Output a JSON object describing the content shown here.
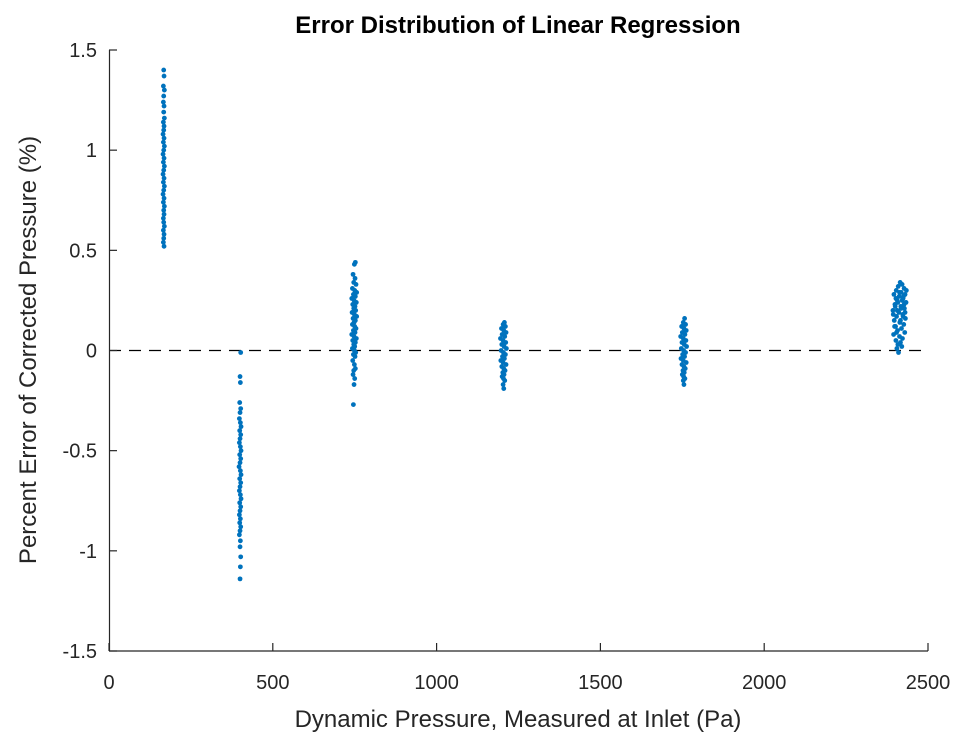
{
  "chart_data": {
    "type": "scatter",
    "title": "Error Distribution of Linear Regression",
    "xlabel": "Dynamic Pressure, Measured at Inlet (Pa)",
    "ylabel": "Percent Error of Corrected Pressure (%)",
    "xlim": [
      0,
      2500
    ],
    "ylim": [
      -1.5,
      1.5
    ],
    "xticks": [
      0,
      500,
      1000,
      1500,
      2000,
      2500
    ],
    "yticks": [
      -1.5,
      -1,
      -0.5,
      0,
      0.5,
      1,
      1.5
    ],
    "xtick_labels": [
      "0",
      "500",
      "1000",
      "1500",
      "2000",
      "2500"
    ],
    "ytick_labels": [
      "-1.5",
      "-1",
      "-0.5",
      "0",
      "0.5",
      "1",
      "1.5"
    ],
    "reference_line": {
      "y": 0,
      "style": "dashed"
    },
    "grid": false,
    "colors": {
      "marker": "#0072BD",
      "axis": "#262626",
      "reference_line": "#000000"
    },
    "series": [
      {
        "points": [
          [
            167,
            1.4
          ],
          [
            168,
            1.37
          ],
          [
            166,
            1.32
          ],
          [
            169,
            1.3
          ],
          [
            167,
            1.27
          ],
          [
            166,
            1.24
          ],
          [
            168,
            1.22
          ],
          [
            167,
            1.19
          ],
          [
            169,
            1.16
          ],
          [
            166,
            1.14
          ],
          [
            168,
            1.12
          ],
          [
            167,
            1.1
          ],
          [
            165,
            1.08
          ],
          [
            168,
            1.06
          ],
          [
            166,
            1.04
          ],
          [
            169,
            1.02
          ],
          [
            167,
            1.0
          ],
          [
            165,
            0.98
          ],
          [
            168,
            0.96
          ],
          [
            166,
            0.94
          ],
          [
            169,
            0.92
          ],
          [
            167,
            0.9
          ],
          [
            165,
            0.88
          ],
          [
            168,
            0.86
          ],
          [
            166,
            0.84
          ],
          [
            169,
            0.82
          ],
          [
            167,
            0.8
          ],
          [
            165,
            0.78
          ],
          [
            168,
            0.76
          ],
          [
            166,
            0.74
          ],
          [
            169,
            0.72
          ],
          [
            167,
            0.7
          ],
          [
            168,
            0.68
          ],
          [
            166,
            0.66
          ],
          [
            167,
            0.64
          ],
          [
            169,
            0.62
          ],
          [
            166,
            0.6
          ],
          [
            168,
            0.58
          ],
          [
            167,
            0.56
          ],
          [
            166,
            0.54
          ],
          [
            168,
            0.52
          ],
          [
            402,
            -0.01
          ],
          [
            400,
            -0.13
          ],
          [
            401,
            -0.16
          ],
          [
            399,
            -0.26
          ],
          [
            402,
            -0.29
          ],
          [
            400,
            -0.31
          ],
          [
            398,
            -0.34
          ],
          [
            401,
            -0.36
          ],
          [
            403,
            -0.38
          ],
          [
            399,
            -0.4
          ],
          [
            402,
            -0.42
          ],
          [
            400,
            -0.44
          ],
          [
            398,
            -0.46
          ],
          [
            401,
            -0.48
          ],
          [
            403,
            -0.5
          ],
          [
            399,
            -0.52
          ],
          [
            402,
            -0.54
          ],
          [
            400,
            -0.56
          ],
          [
            397,
            -0.58
          ],
          [
            401,
            -0.6
          ],
          [
            403,
            -0.62
          ],
          [
            399,
            -0.64
          ],
          [
            402,
            -0.66
          ],
          [
            400,
            -0.68
          ],
          [
            398,
            -0.7
          ],
          [
            401,
            -0.72
          ],
          [
            403,
            -0.74
          ],
          [
            399,
            -0.76
          ],
          [
            402,
            -0.78
          ],
          [
            400,
            -0.8
          ],
          [
            398,
            -0.82
          ],
          [
            401,
            -0.84
          ],
          [
            399,
            -0.86
          ],
          [
            402,
            -0.88
          ],
          [
            400,
            -0.9
          ],
          [
            398,
            -0.92
          ],
          [
            401,
            -0.95
          ],
          [
            400,
            -0.98
          ],
          [
            402,
            -1.03
          ],
          [
            401,
            -1.08
          ],
          [
            400,
            -1.14
          ],
          [
            752,
            0.44
          ],
          [
            749,
            0.43
          ],
          [
            745,
            0.38
          ],
          [
            751,
            0.36
          ],
          [
            747,
            0.34
          ],
          [
            754,
            0.33
          ],
          [
            743,
            0.31
          ],
          [
            750,
            0.3
          ],
          [
            756,
            0.29
          ],
          [
            746,
            0.28
          ],
          [
            752,
            0.27
          ],
          [
            741,
            0.26
          ],
          [
            748,
            0.25
          ],
          [
            755,
            0.24
          ],
          [
            744,
            0.23
          ],
          [
            751,
            0.22
          ],
          [
            747,
            0.21
          ],
          [
            753,
            0.2
          ],
          [
            742,
            0.19
          ],
          [
            749,
            0.18
          ],
          [
            756,
            0.17
          ],
          [
            745,
            0.16
          ],
          [
            752,
            0.15
          ],
          [
            748,
            0.14
          ],
          [
            743,
            0.13
          ],
          [
            750,
            0.12
          ],
          [
            754,
            0.11
          ],
          [
            746,
            0.1
          ],
          [
            751,
            0.09
          ],
          [
            741,
            0.08
          ],
          [
            748,
            0.07
          ],
          [
            755,
            0.06
          ],
          [
            744,
            0.05
          ],
          [
            752,
            0.04
          ],
          [
            747,
            0.03
          ],
          [
            750,
            0.02
          ],
          [
            743,
            0.01
          ],
          [
            749,
            0.0
          ],
          [
            753,
            -0.01
          ],
          [
            746,
            -0.02
          ],
          [
            751,
            -0.03
          ],
          [
            744,
            -0.05
          ],
          [
            749,
            -0.07
          ],
          [
            752,
            -0.09
          ],
          [
            747,
            -0.1
          ],
          [
            745,
            -0.12
          ],
          [
            750,
            -0.14
          ],
          [
            748,
            -0.17
          ],
          [
            746,
            -0.27
          ],
          [
            1207,
            0.14
          ],
          [
            1203,
            0.13
          ],
          [
            1210,
            0.12
          ],
          [
            1198,
            0.11
          ],
          [
            1205,
            0.1
          ],
          [
            1212,
            0.09
          ],
          [
            1200,
            0.08
          ],
          [
            1208,
            0.07
          ],
          [
            1195,
            0.06
          ],
          [
            1203,
            0.05
          ],
          [
            1211,
            0.04
          ],
          [
            1199,
            0.03
          ],
          [
            1206,
            0.02
          ],
          [
            1213,
            0.01
          ],
          [
            1197,
            0.0
          ],
          [
            1204,
            -0.01
          ],
          [
            1210,
            -0.02
          ],
          [
            1201,
            -0.03
          ],
          [
            1207,
            -0.04
          ],
          [
            1196,
            -0.05
          ],
          [
            1203,
            -0.06
          ],
          [
            1212,
            -0.07
          ],
          [
            1199,
            -0.08
          ],
          [
            1205,
            -0.09
          ],
          [
            1209,
            -0.1
          ],
          [
            1202,
            -0.11
          ],
          [
            1206,
            -0.12
          ],
          [
            1200,
            -0.13
          ],
          [
            1204,
            -0.14
          ],
          [
            1208,
            -0.15
          ],
          [
            1203,
            -0.17
          ],
          [
            1205,
            -0.19
          ],
          [
            1757,
            0.16
          ],
          [
            1753,
            0.14
          ],
          [
            1760,
            0.13
          ],
          [
            1748,
            0.12
          ],
          [
            1755,
            0.11
          ],
          [
            1762,
            0.1
          ],
          [
            1750,
            0.09
          ],
          [
            1758,
            0.08
          ],
          [
            1745,
            0.07
          ],
          [
            1753,
            0.06
          ],
          [
            1761,
            0.05
          ],
          [
            1749,
            0.04
          ],
          [
            1756,
            0.03
          ],
          [
            1763,
            0.02
          ],
          [
            1747,
            0.01
          ],
          [
            1754,
            0.0
          ],
          [
            1760,
            -0.01
          ],
          [
            1751,
            -0.02
          ],
          [
            1757,
            -0.03
          ],
          [
            1746,
            -0.04
          ],
          [
            1753,
            -0.05
          ],
          [
            1762,
            -0.06
          ],
          [
            1749,
            -0.07
          ],
          [
            1755,
            -0.08
          ],
          [
            1759,
            -0.09
          ],
          [
            1752,
            -0.1
          ],
          [
            1756,
            -0.11
          ],
          [
            1750,
            -0.12
          ],
          [
            1754,
            -0.13
          ],
          [
            1758,
            -0.14
          ],
          [
            1753,
            -0.15
          ],
          [
            1755,
            -0.17
          ],
          [
            2415,
            0.34
          ],
          [
            2421,
            0.33
          ],
          [
            2409,
            0.32
          ],
          [
            2427,
            0.31
          ],
          [
            2403,
            0.3
          ],
          [
            2418,
            0.29
          ],
          [
            2430,
            0.28
          ],
          [
            2396,
            0.28
          ],
          [
            2412,
            0.27
          ],
          [
            2424,
            0.26
          ],
          [
            2406,
            0.25
          ],
          [
            2433,
            0.24
          ],
          [
            2399,
            0.23
          ],
          [
            2417,
            0.22
          ],
          [
            2428,
            0.21
          ],
          [
            2393,
            0.2
          ],
          [
            2411,
            0.19
          ],
          [
            2423,
            0.18
          ],
          [
            2404,
            0.17
          ],
          [
            2431,
            0.16
          ],
          [
            2397,
            0.15
          ],
          [
            2414,
            0.14
          ],
          [
            2426,
            0.13
          ],
          [
            2401,
            0.12
          ],
          [
            2419,
            0.11
          ],
          [
            2407,
            0.1
          ],
          [
            2429,
            0.09
          ],
          [
            2395,
            0.08
          ],
          [
            2413,
            0.07
          ],
          [
            2422,
            0.06
          ],
          [
            2402,
            0.05
          ],
          [
            2416,
            0.04
          ],
          [
            2408,
            0.03
          ],
          [
            2420,
            0.02
          ],
          [
            2405,
            0.01
          ],
          [
            2410,
            -0.01
          ],
          [
            2400,
            0.22
          ],
          [
            2425,
            0.27
          ],
          [
            2408,
            0.24
          ],
          [
            2434,
            0.3
          ],
          [
            2402,
            0.26
          ],
          [
            2418,
            0.21
          ],
          [
            2427,
            0.23
          ],
          [
            2394,
            0.18
          ],
          [
            2413,
            0.29
          ],
          [
            2421,
            0.25
          ],
          [
            2406,
            0.2
          ],
          [
            2430,
            0.19
          ],
          [
            2398,
            0.12
          ],
          [
            2416,
            0.15
          ],
          [
            2424,
            0.17
          ],
          [
            2404,
            0.09
          ]
        ]
      }
    ]
  }
}
